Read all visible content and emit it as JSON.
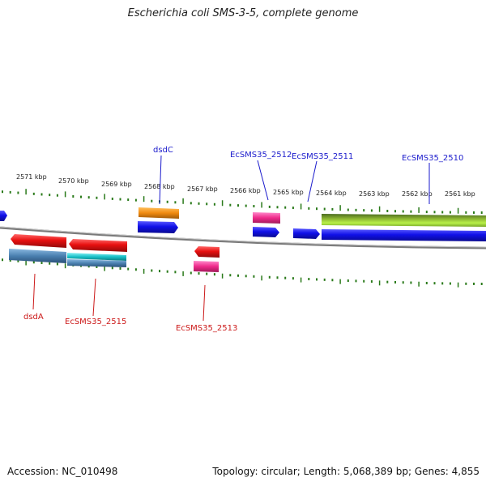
{
  "title": "Escherichia coli SMS-3-5, complete genome",
  "footer": {
    "accession": "Accession: NC_010498",
    "topology": "Topology: circular; Length: 5,068,389 bp; Genes: 4,855"
  },
  "ticks": [
    {
      "label": "2571 kbp"
    },
    {
      "label": "2570 kbp"
    },
    {
      "label": "2569 kbp"
    },
    {
      "label": "2568 kbp"
    },
    {
      "label": "2567 kbp"
    },
    {
      "label": "2566 kbp"
    },
    {
      "label": "2565 kbp"
    },
    {
      "label": "2564 kbp"
    },
    {
      "label": "2563 kbp"
    },
    {
      "label": "2562 kbp"
    },
    {
      "label": "2561 kbp"
    }
  ],
  "gene_labels": {
    "forward": [
      "dsdC",
      "EcSMS35_2512",
      "EcSMS35_2511",
      "EcSMS35_2510"
    ],
    "reverse": [
      "dsdA",
      "EcSMS35_2515",
      "EcSMS35_2513"
    ]
  },
  "colors": {
    "forward_label": "#1a1acc",
    "reverse_label": "#cc1a1a",
    "backbone": "#7a7a7a",
    "tick": "#2a7a1a",
    "blue_feature": "#1010e0",
    "red_feature": "#e01010",
    "orange_feature": "#f08a10",
    "pink_feature": "#ee2a8a",
    "steel_feature": "#4a80b0",
    "cyan_feature": "#18c0c8",
    "green_feature": "#88c030"
  }
}
